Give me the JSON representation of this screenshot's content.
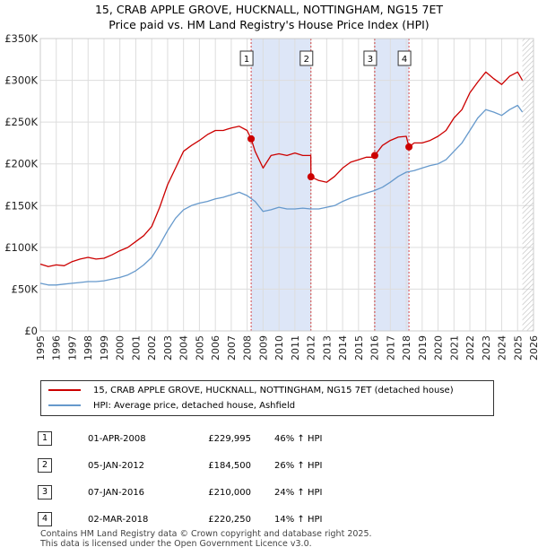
{
  "title": "15, CRAB APPLE GROVE, HUCKNALL, NOTTINGHAM, NG15 7ET",
  "subtitle": "Price paid vs. HM Land Registry's House Price Index (HPI)",
  "colors": {
    "property": "#cc0000",
    "hpi": "#6699cc",
    "shade": "#dde6f7",
    "grid": "#dddddd",
    "hatch": "#bbbbbb"
  },
  "legend": {
    "property_label": "15, CRAB APPLE GROVE, HUCKNALL, NOTTINGHAM, NG15 7ET (detached house)",
    "hpi_label": "HPI: Average price, detached house, Ashfield"
  },
  "sales": [
    {
      "num": "1",
      "date": "01-APR-2008",
      "price": "£229,995",
      "hpi": "46% ↑ HPI"
    },
    {
      "num": "2",
      "date": "05-JAN-2012",
      "price": "£184,500",
      "hpi": "26% ↑ HPI"
    },
    {
      "num": "3",
      "date": "07-JAN-2016",
      "price": "£210,000",
      "hpi": "24% ↑ HPI"
    },
    {
      "num": "4",
      "date": "02-MAR-2018",
      "price": "£220,250",
      "hpi": "14% ↑ HPI"
    }
  ],
  "footer": {
    "line1": "Contains HM Land Registry data © Crown copyright and database right 2025.",
    "line2": "This data is licensed under the Open Government Licence v3.0."
  },
  "chart_data": {
    "type": "line",
    "title": "15, CRAB APPLE GROVE, HUCKNALL, NOTTINGHAM, NG15 7ET",
    "subtitle": "Price paid vs. HM Land Registry's House Price Index (HPI)",
    "xlabel": "",
    "ylabel": "",
    "xlim": [
      1995,
      2026
    ],
    "ylim": [
      0,
      350000
    ],
    "x_ticks": [
      1995,
      1996,
      1997,
      1998,
      1999,
      2000,
      2001,
      2002,
      2003,
      2004,
      2005,
      2006,
      2007,
      2008,
      2009,
      2010,
      2011,
      2012,
      2013,
      2014,
      2015,
      2016,
      2017,
      2018,
      2019,
      2020,
      2021,
      2022,
      2023,
      2024,
      2025,
      2026
    ],
    "y_ticks": [
      0,
      50000,
      100000,
      150000,
      200000,
      250000,
      300000,
      350000
    ],
    "y_tick_labels": [
      "£0",
      "£50K",
      "£100K",
      "£150K",
      "£200K",
      "£250K",
      "£300K",
      "£350K"
    ],
    "grid": true,
    "legend_position": "below",
    "shaded_spans": [
      [
        2008.25,
        2012.01
      ],
      [
        2016.02,
        2018.17
      ]
    ],
    "projection_start": 2025.3,
    "series": [
      {
        "name": "15, CRAB APPLE GROVE, HUCKNALL, NOTTINGHAM, NG15 7ET (detached house)",
        "x": [
          1995.0,
          1995.5,
          1996.0,
          1996.5,
          1997.0,
          1997.5,
          1998.0,
          1998.5,
          1999.0,
          1999.5,
          2000.0,
          2000.5,
          2001.0,
          2001.5,
          2002.0,
          2002.5,
          2003.0,
          2003.5,
          2004.0,
          2004.5,
          2005.0,
          2005.5,
          2006.0,
          2006.5,
          2007.0,
          2007.5,
          2008.0,
          2008.25,
          2008.5,
          2009.0,
          2009.5,
          2010.0,
          2010.5,
          2011.0,
          2011.5,
          2012.0,
          2012.01,
          2012.5,
          2013.0,
          2013.5,
          2014.0,
          2014.5,
          2015.0,
          2015.5,
          2016.0,
          2016.02,
          2016.5,
          2017.0,
          2017.5,
          2018.0,
          2018.17,
          2018.5,
          2019.0,
          2019.5,
          2020.0,
          2020.5,
          2021.0,
          2021.5,
          2022.0,
          2022.5,
          2023.0,
          2023.5,
          2024.0,
          2024.5,
          2025.0,
          2025.3
        ],
        "values": [
          80000,
          77000,
          79000,
          78000,
          83000,
          86000,
          88000,
          86000,
          87000,
          91000,
          96000,
          100000,
          107000,
          114000,
          125000,
          148000,
          175000,
          195000,
          215000,
          222000,
          228000,
          235000,
          240000,
          240000,
          243000,
          245000,
          240000,
          229995,
          215000,
          195000,
          210000,
          212000,
          210000,
          213000,
          210000,
          210000,
          184500,
          180000,
          178000,
          185000,
          195000,
          202000,
          205000,
          208000,
          208000,
          210000,
          222000,
          228000,
          232000,
          233000,
          220250,
          225000,
          225000,
          228000,
          233000,
          240000,
          255000,
          265000,
          285000,
          298000,
          310000,
          302000,
          295000,
          305000,
          310000,
          300000
        ]
      },
      {
        "name": "HPI: Average price, detached house, Ashfield",
        "x": [
          1995.0,
          1995.5,
          1996.0,
          1996.5,
          1997.0,
          1997.5,
          1998.0,
          1998.5,
          1999.0,
          1999.5,
          2000.0,
          2000.5,
          2001.0,
          2001.5,
          2002.0,
          2002.5,
          2003.0,
          2003.5,
          2004.0,
          2004.5,
          2005.0,
          2005.5,
          2006.0,
          2006.5,
          2007.0,
          2007.5,
          2008.0,
          2008.5,
          2009.0,
          2009.5,
          2010.0,
          2010.5,
          2011.0,
          2011.5,
          2012.0,
          2012.5,
          2013.0,
          2013.5,
          2014.0,
          2014.5,
          2015.0,
          2015.5,
          2016.0,
          2016.5,
          2017.0,
          2017.5,
          2018.0,
          2018.5,
          2019.0,
          2019.5,
          2020.0,
          2020.5,
          2021.0,
          2021.5,
          2022.0,
          2022.5,
          2023.0,
          2023.5,
          2024.0,
          2024.5,
          2025.0,
          2025.3
        ],
        "values": [
          57000,
          55000,
          55000,
          56000,
          57000,
          58000,
          59000,
          59000,
          60000,
          62000,
          64000,
          67000,
          72000,
          79000,
          88000,
          103000,
          120000,
          135000,
          145000,
          150000,
          153000,
          155000,
          158000,
          160000,
          163000,
          166000,
          162000,
          155000,
          143000,
          145000,
          148000,
          146000,
          146000,
          147000,
          146000,
          146000,
          148000,
          150000,
          155000,
          159000,
          162000,
          165000,
          168000,
          172000,
          178000,
          185000,
          190000,
          192000,
          195000,
          198000,
          200000,
          205000,
          215000,
          225000,
          240000,
          255000,
          265000,
          262000,
          258000,
          265000,
          270000,
          262000
        ]
      }
    ],
    "annotations": [
      {
        "label": "1",
        "x": 2008.25,
        "y": 229995
      },
      {
        "label": "2",
        "x": 2012.01,
        "y": 184500
      },
      {
        "label": "3",
        "x": 2016.02,
        "y": 210000
      },
      {
        "label": "4",
        "x": 2018.17,
        "y": 220250
      }
    ]
  }
}
